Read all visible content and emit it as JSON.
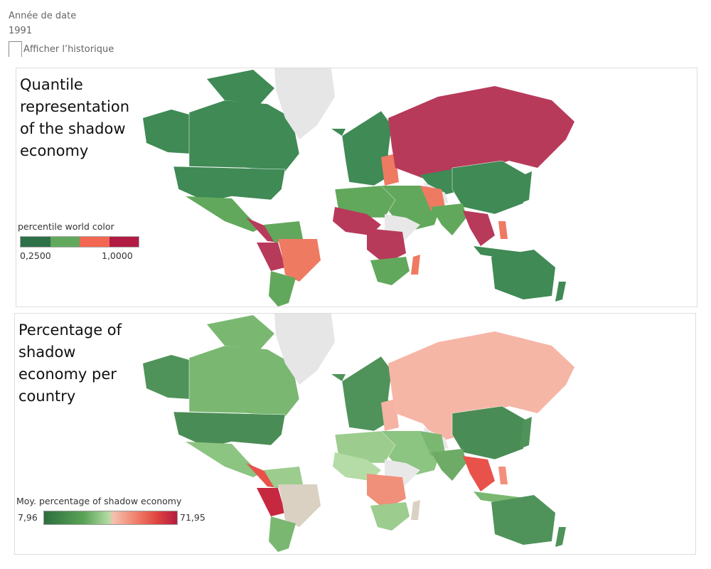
{
  "filter": {
    "label": "Année de date",
    "value": "1991",
    "history_checkbox_label": "Afficher l’historique",
    "history_checked": false
  },
  "panels": [
    {
      "title_lines": [
        "Quantile",
        "representation",
        "of the shadow",
        "economy"
      ],
      "legend": {
        "title": "percentile world color",
        "min_label": "0,2500",
        "max_label": "1,0000",
        "colors": [
          "#2e7048",
          "#62a85c",
          "#f26752",
          "#b11b44"
        ]
      }
    },
    {
      "title_lines": [
        "Percentage of",
        "shadow",
        "economy per",
        "country"
      ],
      "legend": {
        "title": "Moy. percentage of shadow economy",
        "min_label": "7,96",
        "max_label": "71,95"
      }
    }
  ]
}
